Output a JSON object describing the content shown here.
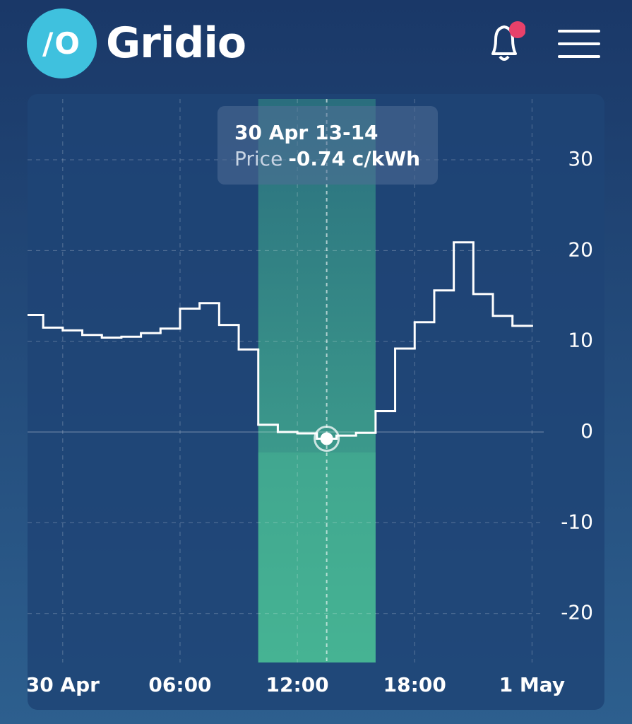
{
  "header": {
    "logo_icon": "/O",
    "title": "Gridio"
  },
  "chart_data": {
    "type": "step",
    "x": [
      -2,
      -1,
      0,
      1,
      2,
      3,
      4,
      5,
      6,
      7,
      8,
      9,
      10,
      11,
      12,
      13,
      14,
      15,
      16,
      17,
      18,
      19,
      20,
      21,
      22,
      23
    ],
    "series": [
      {
        "name": "Price",
        "color": "#ffffff",
        "values": [
          12.9,
          11.5,
          11.2,
          10.7,
          10.4,
          10.5,
          10.9,
          11.4,
          13.6,
          14.2,
          11.8,
          9.1,
          0.8,
          0.0,
          -0.15,
          -0.74,
          -0.4,
          -0.1,
          2.3,
          9.2,
          12.1,
          15.6,
          20.9,
          15.2,
          12.8,
          11.7
        ]
      }
    ],
    "xlim": [
      -1.8,
      24.6
    ],
    "xticks": [
      {
        "value": 0,
        "label": "30 Apr"
      },
      {
        "value": 6,
        "label": "06:00"
      },
      {
        "value": 12,
        "label": "12:00"
      },
      {
        "value": 18,
        "label": "18:00"
      },
      {
        "value": 24,
        "label": "1 May"
      }
    ],
    "ylim": [
      -25.4,
      36.7
    ],
    "yticks": [
      -20,
      -10,
      0,
      10,
      20,
      30
    ],
    "grid": true,
    "highlight": {
      "from": 10,
      "to": 16,
      "color": "#46b393"
    },
    "selected": {
      "x": 13,
      "value": -0.74
    },
    "tooltip": {
      "title": "30 Apr 13-14",
      "label": "Price",
      "text": "-0.74 c/kWh"
    }
  }
}
